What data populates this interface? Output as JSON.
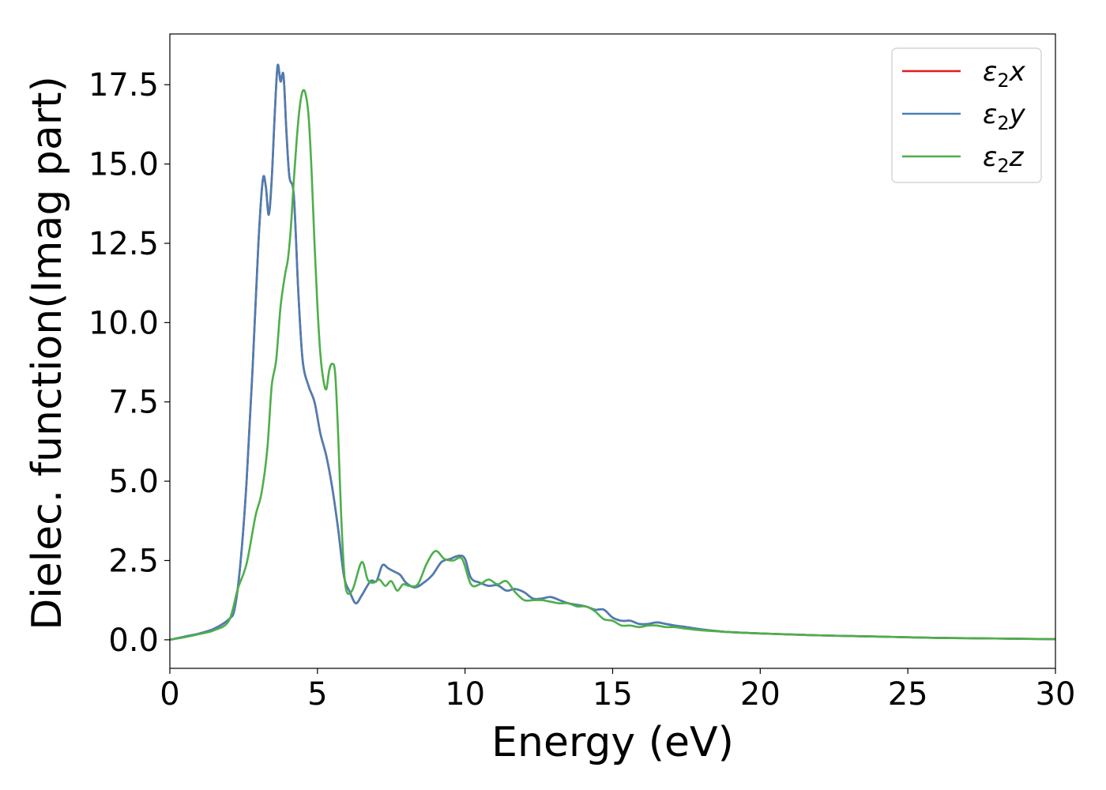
{
  "chart_data": {
    "type": "line",
    "xlabel": "Energy (eV)",
    "ylabel": "Dielec. function(Imag part)",
    "xlim": [
      0,
      30
    ],
    "ylim": [
      -0.9,
      19.1
    ],
    "xticks": [
      0,
      5,
      10,
      15,
      20,
      25,
      30
    ],
    "xtick_labels": [
      "0",
      "5",
      "10",
      "15",
      "20",
      "25",
      "30"
    ],
    "yticks": [
      0.0,
      2.5,
      5.0,
      7.5,
      10.0,
      12.5,
      15.0,
      17.5
    ],
    "ytick_labels": [
      "0.0",
      "2.5",
      "5.0",
      "7.5",
      "10.0",
      "12.5",
      "15.0",
      "17.5"
    ],
    "grid": false,
    "legend_position": "top-right",
    "series": [
      {
        "name": "ε₂x",
        "legend_main": "ε",
        "legend_sub": "2",
        "legend_suffix": "x",
        "color": "#e41a1c",
        "x": [
          0,
          0.5,
          1,
          1.5,
          2,
          2.2,
          2.4,
          2.6,
          2.8,
          3.0,
          3.15,
          3.25,
          3.35,
          3.45,
          3.55,
          3.65,
          3.75,
          3.85,
          3.95,
          4.05,
          4.2,
          4.35,
          4.5,
          4.7,
          4.9,
          5.1,
          5.3,
          5.5,
          5.7,
          5.9,
          6.1,
          6.3,
          6.5,
          6.8,
          7.0,
          7.2,
          7.4,
          7.6,
          7.8,
          8.0,
          8.3,
          8.6,
          8.9,
          9.2,
          9.5,
          9.8,
          10.0,
          10.2,
          10.5,
          10.8,
          11.1,
          11.4,
          11.7,
          12.0,
          12.3,
          12.6,
          12.9,
          13.2,
          13.5,
          13.8,
          14.1,
          14.4,
          14.7,
          15.0,
          15.3,
          15.6,
          15.9,
          16.2,
          16.5,
          16.8,
          17.1,
          17.5,
          18,
          18.5,
          19,
          20,
          21,
          22,
          23,
          24,
          25,
          26,
          27,
          28,
          29,
          30
        ],
        "values": [
          0.0,
          0.1,
          0.2,
          0.35,
          0.65,
          1.0,
          2.5,
          5.0,
          8.5,
          12.5,
          14.5,
          14.3,
          13.4,
          14.5,
          16.5,
          18.1,
          17.6,
          17.8,
          16.0,
          14.6,
          14.0,
          11.0,
          8.8,
          8.0,
          7.5,
          6.5,
          5.8,
          4.8,
          3.5,
          2.0,
          1.5,
          1.15,
          1.4,
          1.85,
          1.85,
          2.35,
          2.25,
          2.15,
          2.05,
          1.8,
          1.65,
          1.8,
          2.05,
          2.45,
          2.55,
          2.65,
          2.55,
          1.95,
          1.8,
          1.7,
          1.72,
          1.55,
          1.6,
          1.5,
          1.3,
          1.3,
          1.35,
          1.25,
          1.15,
          1.1,
          1.05,
          0.95,
          0.95,
          0.7,
          0.6,
          0.6,
          0.5,
          0.5,
          0.55,
          0.5,
          0.45,
          0.4,
          0.33,
          0.28,
          0.24,
          0.2,
          0.17,
          0.14,
          0.12,
          0.1,
          0.08,
          0.06,
          0.05,
          0.04,
          0.03,
          0.02
        ]
      },
      {
        "name": "ε₂y",
        "legend_main": "ε",
        "legend_sub": "2",
        "legend_suffix": "y",
        "color": "#4a7eb5",
        "x": [
          0,
          0.5,
          1,
          1.5,
          2,
          2.2,
          2.4,
          2.6,
          2.8,
          3.0,
          3.15,
          3.25,
          3.35,
          3.45,
          3.55,
          3.65,
          3.75,
          3.85,
          3.95,
          4.05,
          4.2,
          4.35,
          4.5,
          4.7,
          4.9,
          5.1,
          5.3,
          5.5,
          5.7,
          5.9,
          6.1,
          6.3,
          6.5,
          6.8,
          7.0,
          7.2,
          7.4,
          7.6,
          7.8,
          8.0,
          8.3,
          8.6,
          8.9,
          9.2,
          9.5,
          9.8,
          10.0,
          10.2,
          10.5,
          10.8,
          11.1,
          11.4,
          11.7,
          12.0,
          12.3,
          12.6,
          12.9,
          13.2,
          13.5,
          13.8,
          14.1,
          14.4,
          14.7,
          15.0,
          15.3,
          15.6,
          15.9,
          16.2,
          16.5,
          16.8,
          17.1,
          17.5,
          18,
          18.5,
          19,
          20,
          21,
          22,
          23,
          24,
          25,
          26,
          27,
          28,
          29,
          30
        ],
        "values": [
          0.0,
          0.1,
          0.2,
          0.35,
          0.65,
          1.0,
          2.5,
          5.0,
          8.5,
          12.5,
          14.5,
          14.3,
          13.4,
          14.5,
          16.5,
          18.1,
          17.6,
          17.8,
          16.0,
          14.6,
          14.0,
          11.0,
          8.8,
          8.0,
          7.5,
          6.5,
          5.8,
          4.8,
          3.5,
          2.0,
          1.5,
          1.15,
          1.4,
          1.85,
          1.85,
          2.35,
          2.25,
          2.15,
          2.05,
          1.8,
          1.65,
          1.8,
          2.05,
          2.45,
          2.55,
          2.65,
          2.55,
          1.95,
          1.8,
          1.7,
          1.72,
          1.55,
          1.6,
          1.5,
          1.3,
          1.3,
          1.35,
          1.25,
          1.15,
          1.1,
          1.05,
          0.95,
          0.95,
          0.7,
          0.6,
          0.6,
          0.5,
          0.5,
          0.55,
          0.5,
          0.45,
          0.4,
          0.33,
          0.28,
          0.24,
          0.2,
          0.17,
          0.14,
          0.12,
          0.1,
          0.08,
          0.06,
          0.05,
          0.04,
          0.03,
          0.02
        ]
      },
      {
        "name": "ε₂z",
        "legend_main": "ε",
        "legend_sub": "2",
        "legend_suffix": "z",
        "color": "#4daf4a",
        "x": [
          0,
          0.5,
          1,
          1.5,
          2,
          2.3,
          2.6,
          2.9,
          3.1,
          3.3,
          3.45,
          3.6,
          3.75,
          3.9,
          4.0,
          4.1,
          4.2,
          4.3,
          4.4,
          4.5,
          4.6,
          4.7,
          4.8,
          4.9,
          5.0,
          5.1,
          5.2,
          5.3,
          5.4,
          5.5,
          5.6,
          5.7,
          5.8,
          5.9,
          6.0,
          6.2,
          6.5,
          6.7,
          6.9,
          7.1,
          7.3,
          7.5,
          7.7,
          7.9,
          8.1,
          8.4,
          8.7,
          9.0,
          9.3,
          9.6,
          9.9,
          10.2,
          10.5,
          10.8,
          11.1,
          11.4,
          11.7,
          12.0,
          12.3,
          12.6,
          12.9,
          13.2,
          13.5,
          13.8,
          14.1,
          14.4,
          14.7,
          15.0,
          15.3,
          15.6,
          15.9,
          16.2,
          16.5,
          16.8,
          17.1,
          17.5,
          18,
          18.5,
          19,
          20,
          21,
          22,
          23,
          24,
          25,
          26,
          27,
          28,
          29,
          30
        ],
        "values": [
          0.0,
          0.08,
          0.18,
          0.3,
          0.6,
          1.6,
          2.4,
          3.9,
          4.6,
          6.0,
          8.0,
          8.8,
          10.5,
          11.5,
          12.0,
          13.0,
          14.5,
          15.8,
          16.8,
          17.3,
          17.2,
          16.5,
          14.8,
          12.5,
          10.5,
          9.0,
          8.2,
          7.9,
          8.5,
          8.7,
          8.4,
          6.5,
          4.0,
          2.2,
          1.5,
          1.6,
          2.45,
          1.9,
          1.8,
          1.9,
          1.7,
          1.85,
          1.55,
          1.75,
          1.7,
          1.75,
          2.4,
          2.8,
          2.55,
          2.5,
          2.55,
          1.75,
          1.75,
          1.9,
          1.75,
          1.85,
          1.5,
          1.25,
          1.25,
          1.25,
          1.2,
          1.15,
          1.15,
          1.05,
          1.05,
          0.9,
          0.65,
          0.6,
          0.45,
          0.45,
          0.4,
          0.45,
          0.45,
          0.4,
          0.4,
          0.35,
          0.3,
          0.27,
          0.24,
          0.2,
          0.17,
          0.14,
          0.12,
          0.1,
          0.08,
          0.06,
          0.05,
          0.04,
          0.03,
          0.02
        ]
      }
    ]
  }
}
